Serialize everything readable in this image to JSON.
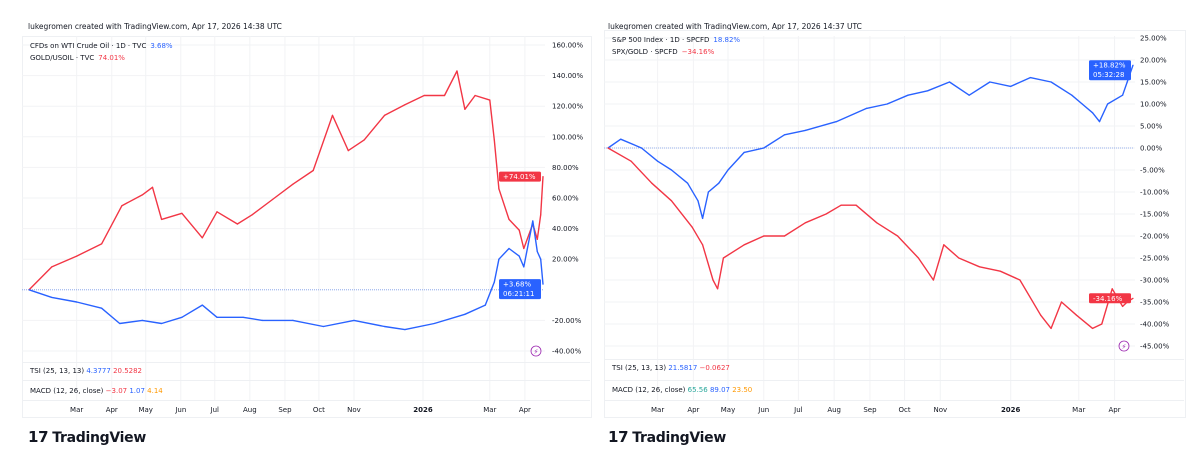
{
  "brand": "TradingView",
  "colors": {
    "blue": "#2962ff",
    "red": "#f23645",
    "orange": "#ff9800",
    "teal": "#26a69a",
    "magenta": "#9c27b0"
  },
  "left": {
    "credit": "lukegromen created with TradingView.com, Apr 17, 2026 14:38 UTC",
    "legend": [
      {
        "label": "CFDs on WTI Crude Oil · 1D · TVC",
        "value": "3.68%",
        "color": "#2962ff"
      },
      {
        "label": "GOLD/USOIL · TVC",
        "value": "74.01%",
        "color": "#f23645"
      }
    ],
    "tsi": {
      "label": "TSI (25, 13, 13)",
      "v1": "4.3777",
      "v2": "20.5282"
    },
    "macd": {
      "label": "MACD (12, 26, close)",
      "v1": "−3.07",
      "v2": "1.07",
      "v3": "4.14"
    },
    "tags": [
      {
        "text": "+74.01%",
        "color": "#f23645"
      },
      {
        "text": "+3.68%",
        "time": "06:21:11",
        "color": "#2962ff"
      }
    ]
  },
  "right": {
    "credit": "lukegromen created with TradingView.com, Apr 17, 2026 14:37 UTC",
    "legend": [
      {
        "label": "S&P 500 Index · 1D · SPCFD",
        "value": "18.82%",
        "color": "#2962ff"
      },
      {
        "label": "SPX/GOLD · SPCFD",
        "value": "−34.16%",
        "color": "#f23645"
      }
    ],
    "tsi": {
      "label": "TSI (25, 13, 13)",
      "v1": "21.5817",
      "v2": "−0.0627"
    },
    "macd": {
      "label": "MACD (12, 26, close)",
      "v1": "65.56",
      "v2": "89.07",
      "v3": "23.50"
    },
    "tags": [
      {
        "text": "+18.82%",
        "time": "05:32:28",
        "color": "#2962ff"
      },
      {
        "text": "-34.16%",
        "color": "#f23645"
      }
    ]
  },
  "chart_data": [
    {
      "type": "line",
      "xlim": [
        "2025-01-17",
        "2026-04-17"
      ],
      "ylim": [
        -40,
        160
      ],
      "yticks": [
        "160.00%",
        "140.00%",
        "120.00%",
        "100.00%",
        "80.00%",
        "60.00%",
        "40.00%",
        "20.00%",
        "-20.00%",
        "-40.00%"
      ],
      "ytick_values": [
        160,
        140,
        120,
        100,
        80,
        60,
        40,
        20,
        -20,
        -40
      ],
      "xticks": [
        "Mar",
        "Apr",
        "May",
        "Jun",
        "Jul",
        "Aug",
        "Sep",
        "Oct",
        "Nov",
        "2026",
        "Mar",
        "Apr"
      ],
      "xtick_dates": [
        "2025-03-01",
        "2025-04-01",
        "2025-05-01",
        "2025-06-01",
        "2025-07-01",
        "2025-08-01",
        "2025-09-01",
        "2025-10-01",
        "2025-11-01",
        "2026-01-01",
        "2026-03-01",
        "2026-04-01"
      ],
      "series": [
        {
          "name": "GOLD/USOIL · TVC",
          "color": "#f23645",
          "points": [
            [
              "2025-01-18",
              0
            ],
            [
              "2025-02-07",
              15
            ],
            [
              "2025-03-01",
              22
            ],
            [
              "2025-03-23",
              30
            ],
            [
              "2025-04-10",
              55
            ],
            [
              "2025-04-28",
              62
            ],
            [
              "2025-05-07",
              67
            ],
            [
              "2025-05-15",
              46
            ],
            [
              "2025-06-02",
              50
            ],
            [
              "2025-06-20",
              34
            ],
            [
              "2025-07-03",
              51
            ],
            [
              "2025-07-21",
              43
            ],
            [
              "2025-08-03",
              49
            ],
            [
              "2025-08-21",
              59
            ],
            [
              "2025-09-08",
              69
            ],
            [
              "2025-09-26",
              78
            ],
            [
              "2025-10-13",
              114
            ],
            [
              "2025-10-27",
              91
            ],
            [
              "2025-11-10",
              98
            ],
            [
              "2025-11-28",
              114
            ],
            [
              "2025-12-16",
              121
            ],
            [
              "2026-01-02",
              127
            ],
            [
              "2026-01-20",
              127
            ],
            [
              "2026-01-31",
              143
            ],
            [
              "2026-02-07",
              118
            ],
            [
              "2026-02-16",
              127
            ],
            [
              "2026-03-01",
              124
            ],
            [
              "2026-03-05",
              98
            ],
            [
              "2026-03-09",
              66
            ],
            [
              "2026-03-18",
              46
            ],
            [
              "2026-03-27",
              39
            ],
            [
              "2026-03-31",
              27
            ],
            [
              "2026-04-08",
              43
            ],
            [
              "2026-04-12",
              33
            ],
            [
              "2026-04-15",
              49
            ],
            [
              "2026-04-17",
              74.01
            ]
          ]
        },
        {
          "name": "CFDs on WTI Crude Oil · 1D · TVC",
          "color": "#2962ff",
          "points": [
            [
              "2025-01-18",
              0
            ],
            [
              "2025-02-07",
              -5
            ],
            [
              "2025-03-01",
              -8
            ],
            [
              "2025-03-23",
              -12
            ],
            [
              "2025-04-08",
              -22
            ],
            [
              "2025-04-28",
              -20
            ],
            [
              "2025-05-15",
              -22
            ],
            [
              "2025-06-02",
              -18
            ],
            [
              "2025-06-20",
              -10
            ],
            [
              "2025-07-03",
              -18
            ],
            [
              "2025-07-26",
              -18
            ],
            [
              "2025-08-12",
              -20
            ],
            [
              "2025-09-08",
              -20
            ],
            [
              "2025-10-05",
              -24
            ],
            [
              "2025-11-01",
              -20
            ],
            [
              "2025-11-28",
              -24
            ],
            [
              "2025-12-16",
              -26
            ],
            [
              "2026-01-11",
              -22
            ],
            [
              "2026-02-07",
              -16
            ],
            [
              "2026-02-25",
              -10
            ],
            [
              "2026-03-05",
              5
            ],
            [
              "2026-03-09",
              20
            ],
            [
              "2026-03-18",
              27
            ],
            [
              "2026-03-27",
              22
            ],
            [
              "2026-03-31",
              15
            ],
            [
              "2026-04-04",
              30
            ],
            [
              "2026-04-08",
              45
            ],
            [
              "2026-04-12",
              25
            ],
            [
              "2026-04-15",
              20
            ],
            [
              "2026-04-17",
              3.68
            ]
          ]
        }
      ]
    },
    {
      "type": "line",
      "xlim": [
        "2025-01-17",
        "2026-04-17"
      ],
      "ylim": [
        -45,
        25
      ],
      "yticks": [
        "25.00%",
        "20.00%",
        "15.00%",
        "10.00%",
        "5.00%",
        "0.00%",
        "-5.00%",
        "-10.00%",
        "-15.00%",
        "-20.00%",
        "-25.00%",
        "-30.00%",
        "-35.00%",
        "-40.00%",
        "-45.00%"
      ],
      "ytick_values": [
        25,
        20,
        15,
        10,
        5,
        0,
        -5,
        -10,
        -15,
        -20,
        -25,
        -30,
        -35,
        -40,
        -45
      ],
      "xticks": [
        "Mar",
        "Apr",
        "May",
        "Jun",
        "Jul",
        "Aug",
        "Sep",
        "Oct",
        "Nov",
        "2026",
        "Mar",
        "Apr"
      ],
      "xtick_dates": [
        "2025-03-01",
        "2025-04-01",
        "2025-05-01",
        "2025-06-01",
        "2025-07-01",
        "2025-08-01",
        "2025-09-01",
        "2025-10-01",
        "2025-11-01",
        "2026-01-01",
        "2026-03-01",
        "2026-04-01"
      ],
      "series": [
        {
          "name": "S&P 500 Index · 1D · SPCFD",
          "color": "#2962ff",
          "points": [
            [
              "2025-01-17",
              0
            ],
            [
              "2025-01-28",
              2
            ],
            [
              "2025-02-15",
              0
            ],
            [
              "2025-03-01",
              -3
            ],
            [
              "2025-03-13",
              -5
            ],
            [
              "2025-03-27",
              -8
            ],
            [
              "2025-04-05",
              -12
            ],
            [
              "2025-04-09",
              -16
            ],
            [
              "2025-04-14",
              -10
            ],
            [
              "2025-04-23",
              -8
            ],
            [
              "2025-05-01",
              -5
            ],
            [
              "2025-05-15",
              -1
            ],
            [
              "2025-06-01",
              0
            ],
            [
              "2025-06-19",
              3
            ],
            [
              "2025-07-07",
              4
            ],
            [
              "2025-08-03",
              6
            ],
            [
              "2025-08-29",
              9
            ],
            [
              "2025-09-16",
              10
            ],
            [
              "2025-10-04",
              12
            ],
            [
              "2025-10-21",
              13
            ],
            [
              "2025-11-09",
              15
            ],
            [
              "2025-11-26",
              12
            ],
            [
              "2025-12-14",
              15
            ],
            [
              "2026-01-01",
              14
            ],
            [
              "2026-01-18",
              16
            ],
            [
              "2026-02-05",
              15
            ],
            [
              "2026-02-23",
              12
            ],
            [
              "2026-03-04",
              10
            ],
            [
              "2026-03-13",
              8
            ],
            [
              "2026-03-19",
              6
            ],
            [
              "2026-03-26",
              10
            ],
            [
              "2026-04-08",
              12
            ],
            [
              "2026-04-12",
              15
            ],
            [
              "2026-04-17",
              18.82
            ]
          ]
        },
        {
          "name": "SPX/GOLD · SPCFD",
          "color": "#f23645",
          "points": [
            [
              "2025-01-17",
              0
            ],
            [
              "2025-02-06",
              -3
            ],
            [
              "2025-02-24",
              -8
            ],
            [
              "2025-03-13",
              -12
            ],
            [
              "2025-03-31",
              -18
            ],
            [
              "2025-04-09",
              -22
            ],
            [
              "2025-04-18",
              -30
            ],
            [
              "2025-04-22",
              -32
            ],
            [
              "2025-04-27",
              -25
            ],
            [
              "2025-05-15",
              -22
            ],
            [
              "2025-06-01",
              -20
            ],
            [
              "2025-06-19",
              -20
            ],
            [
              "2025-07-07",
              -17
            ],
            [
              "2025-07-25",
              -15
            ],
            [
              "2025-08-07",
              -13
            ],
            [
              "2025-08-20",
              -13
            ],
            [
              "2025-09-07",
              -17
            ],
            [
              "2025-09-25",
              -20
            ],
            [
              "2025-10-13",
              -25
            ],
            [
              "2025-10-26",
              -30
            ],
            [
              "2025-11-04",
              -22
            ],
            [
              "2025-11-17",
              -25
            ],
            [
              "2025-12-05",
              -27
            ],
            [
              "2025-12-23",
              -28
            ],
            [
              "2026-01-09",
              -30
            ],
            [
              "2026-01-27",
              -38
            ],
            [
              "2026-02-05",
              -41
            ],
            [
              "2026-02-14",
              -35
            ],
            [
              "2026-02-27",
              -38
            ],
            [
              "2026-03-13",
              -41
            ],
            [
              "2026-03-21",
              -40
            ],
            [
              "2026-03-30",
              -32
            ],
            [
              "2026-04-08",
              -36
            ],
            [
              "2026-04-12",
              -35
            ],
            [
              "2026-04-17",
              -34.16
            ]
          ]
        }
      ]
    }
  ]
}
